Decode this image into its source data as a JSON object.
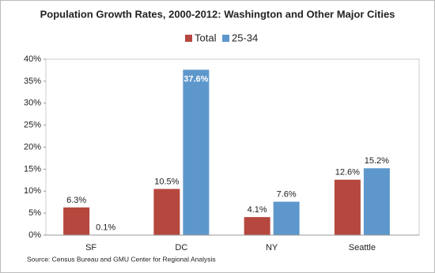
{
  "chart_data": {
    "type": "bar",
    "title": "Population Growth Rates, 2000-2012: Washington and Other Major Cities",
    "source": "Source: Census Bureau and GMU Center for Regional Analysis",
    "categories": [
      "SF",
      "DC",
      "NY",
      "Seattle"
    ],
    "series": [
      {
        "name": "Total",
        "color": "#b5473f",
        "values": [
          6.3,
          10.5,
          4.1,
          12.6
        ],
        "value_labels": [
          "6.3%",
          "10.5%",
          "4.1%",
          "12.6%"
        ]
      },
      {
        "name": "25-34",
        "color": "#5d97cc",
        "values": [
          0.1,
          37.6,
          7.6,
          15.2
        ],
        "value_labels": [
          "0.1%",
          "37.6%",
          "7.6%",
          "15.2%"
        ]
      }
    ],
    "ylim": [
      0,
      40
    ],
    "yticks": [
      {
        "value": 0,
        "label": "0%"
      },
      {
        "value": 5,
        "label": "5%"
      },
      {
        "value": 10,
        "label": "10%"
      },
      {
        "value": 15,
        "label": "15%"
      },
      {
        "value": 20,
        "label": "20%"
      },
      {
        "value": 25,
        "label": "25%"
      },
      {
        "value": 30,
        "label": "30%"
      },
      {
        "value": 35,
        "label": "35%"
      },
      {
        "value": 40,
        "label": "40%"
      }
    ],
    "legend": "top"
  }
}
